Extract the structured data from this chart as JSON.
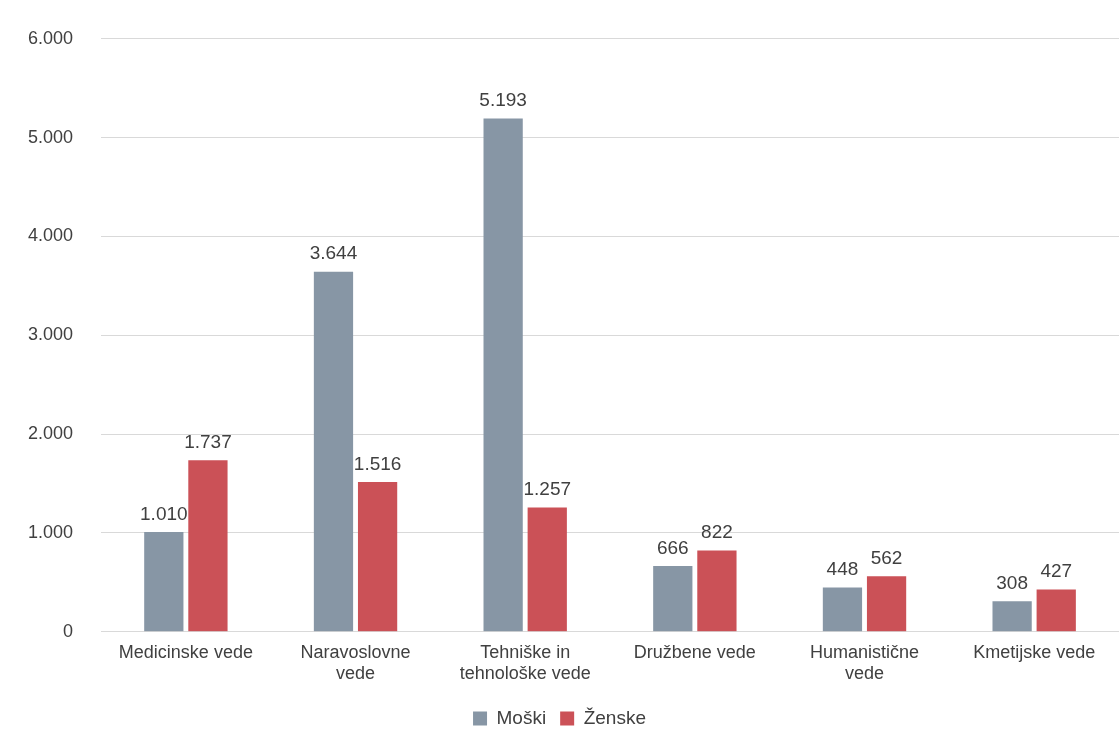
{
  "chart_data": {
    "type": "bar",
    "categories": [
      "Medicinske vede",
      "Naravoslovne vede",
      "Tehniške in tehnološke vede",
      "Družbene vede",
      "Humanistične vede",
      "Kmetijske vede"
    ],
    "series": [
      {
        "name": "Moški",
        "color": "#8796a5",
        "values": [
          1010,
          3644,
          5193,
          666,
          448,
          308
        ],
        "value_labels": [
          "1.010",
          "3.644",
          "5.193",
          "666",
          "448",
          "308"
        ]
      },
      {
        "name": "Ženske",
        "color": "#cb5157",
        "values": [
          1737,
          1516,
          1257,
          822,
          562,
          427
        ],
        "value_labels": [
          "1.737",
          "1.516",
          "1.257",
          "822",
          "562",
          "427"
        ]
      }
    ],
    "ylim": [
      0,
      6000
    ],
    "yticks": [
      {
        "value": 0,
        "label": "0"
      },
      {
        "value": 1000,
        "label": "1.000"
      },
      {
        "value": 2000,
        "label": "2.000"
      },
      {
        "value": 3000,
        "label": "3.000"
      },
      {
        "value": 4000,
        "label": "4.000"
      },
      {
        "value": 5000,
        "label": "5.000"
      },
      {
        "value": 6000,
        "label": "6.000"
      }
    ],
    "grid": "y",
    "legend": "bottom"
  }
}
